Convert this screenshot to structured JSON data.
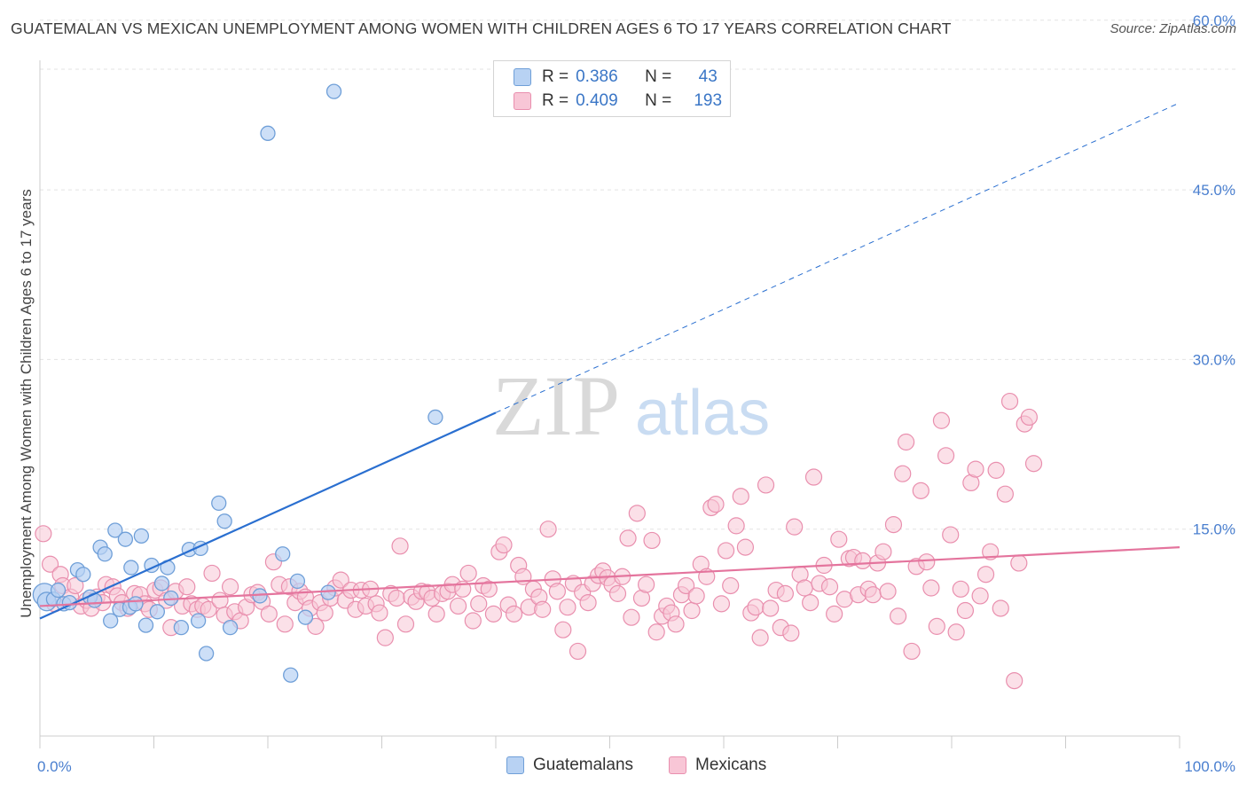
{
  "header": {
    "title": "GUATEMALAN VS MEXICAN UNEMPLOYMENT AMONG WOMEN WITH CHILDREN AGES 6 TO 17 YEARS CORRELATION CHART",
    "source": "Source: ZipAtlas.com"
  },
  "watermark": {
    "zip": "ZIP",
    "atlas": "atlas"
  },
  "legend": {
    "guatemalans": {
      "r_label": "R =",
      "r_value": "0.386",
      "n_label": "N =",
      "n_value": "43",
      "name": "Guatemalans"
    },
    "mexicans": {
      "r_label": "R =",
      "r_value": "0.409",
      "n_label": "N =",
      "n_value": "193",
      "name": "Mexicans"
    }
  },
  "colors": {
    "guatemalans_fill": "#b8d2f3",
    "guatemalans_stroke": "#6f9fd8",
    "guatemalans_line": "#2a6fd0",
    "mexicans_fill": "#f8c6d6",
    "mexicans_stroke": "#e98fae",
    "mexicans_line": "#e4749d",
    "axis_text": "#4a7fcf",
    "grid": "#e3e3e3"
  },
  "chart_data": {
    "type": "scatter",
    "title": "GUATEMALAN VS MEXICAN UNEMPLOYMENT AMONG WOMEN WITH CHILDREN AGES 6 TO 17 YEARS CORRELATION CHART",
    "xlabel": "",
    "ylabel": "Unemployment Among Women with Children Ages 6 to 17 years",
    "xlim": [
      0,
      100
    ],
    "ylim": [
      0,
      63
    ],
    "x_tick_labels": [
      "0.0%",
      "100.0%"
    ],
    "y_ticks": [
      15,
      30,
      45,
      60
    ],
    "y_tick_labels": [
      "15.0%",
      "30.0%",
      "45.0%",
      "60.0%"
    ],
    "grid": true,
    "legend_position": "top-center",
    "series": [
      {
        "name": "Guatemalans",
        "r": 0.386,
        "n": 43,
        "trend": {
          "x": [
            0,
            40
          ],
          "y": [
            7.1,
            25.3
          ],
          "dashed_extension_to": [
            100,
            52.7
          ]
        },
        "points": [
          [
            0.4,
            9.2,
            1.6
          ],
          [
            0.6,
            8.6,
            1.3
          ],
          [
            1.2,
            8.8,
            1
          ],
          [
            1.6,
            9.6,
            1
          ],
          [
            2.1,
            8.4,
            1
          ],
          [
            2.6,
            8.5,
            1
          ],
          [
            3.3,
            11.4,
            1
          ],
          [
            3.8,
            11.0,
            1
          ],
          [
            4.4,
            9.0,
            1
          ],
          [
            4.8,
            8.7,
            1
          ],
          [
            5.3,
            13.4,
            1
          ],
          [
            5.7,
            12.8,
            1
          ],
          [
            6.2,
            6.9,
            1
          ],
          [
            6.6,
            14.9,
            1
          ],
          [
            7.0,
            7.9,
            1
          ],
          [
            7.5,
            14.1,
            1
          ],
          [
            7.9,
            8.1,
            1
          ],
          [
            8.0,
            11.6,
            1
          ],
          [
            8.4,
            8.4,
            1
          ],
          [
            8.9,
            14.4,
            1
          ],
          [
            9.3,
            6.5,
            1
          ],
          [
            9.8,
            11.8,
            1
          ],
          [
            10.3,
            7.7,
            1
          ],
          [
            10.7,
            10.2,
            1
          ],
          [
            11.2,
            11.6,
            1
          ],
          [
            11.5,
            8.9,
            1
          ],
          [
            12.4,
            6.3,
            1
          ],
          [
            13.1,
            13.2,
            1
          ],
          [
            13.9,
            6.9,
            1
          ],
          [
            14.1,
            13.3,
            1
          ],
          [
            14.6,
            4.0,
            1
          ],
          [
            15.7,
            17.3,
            1
          ],
          [
            16.2,
            15.7,
            1
          ],
          [
            16.7,
            6.3,
            1
          ],
          [
            19.3,
            9.1,
            1
          ],
          [
            20.0,
            50.0,
            1
          ],
          [
            21.3,
            12.8,
            1
          ],
          [
            22.0,
            2.1,
            1
          ],
          [
            22.6,
            10.4,
            1
          ],
          [
            23.3,
            7.2,
            1
          ],
          [
            25.3,
            9.4,
            1
          ],
          [
            25.8,
            53.7,
            1
          ],
          [
            34.7,
            24.9,
            1
          ]
        ]
      },
      {
        "name": "Mexicans",
        "r": 0.409,
        "n": 193,
        "trend": {
          "x": [
            0,
            100
          ],
          "y": [
            8.2,
            13.4
          ]
        },
        "points": [
          [
            0.3,
            14.6
          ],
          [
            0.9,
            11.9
          ],
          [
            1.3,
            8.4
          ],
          [
            1.8,
            11.0
          ],
          [
            2.0,
            10.0
          ],
          [
            2.7,
            9.0
          ],
          [
            3.1,
            10.0
          ],
          [
            3.6,
            8.2
          ],
          [
            4.1,
            8.7
          ],
          [
            4.5,
            8.0
          ],
          [
            5.0,
            9.0
          ],
          [
            5.5,
            8.5
          ],
          [
            5.8,
            10.1
          ],
          [
            6.4,
            9.9
          ],
          [
            6.8,
            9.1
          ],
          [
            7.2,
            8.5
          ],
          [
            7.7,
            8.0
          ],
          [
            8.3,
            9.3
          ],
          [
            8.8,
            9.2
          ],
          [
            9.2,
            8.4
          ],
          [
            9.6,
            7.9
          ],
          [
            10.1,
            9.6
          ],
          [
            10.6,
            9.8
          ],
          [
            11.1,
            8.7
          ],
          [
            11.5,
            6.3
          ],
          [
            11.9,
            9.5
          ],
          [
            12.5,
            8.2
          ],
          [
            12.9,
            9.9
          ],
          [
            13.3,
            8.4
          ],
          [
            13.8,
            7.9
          ],
          [
            14.3,
            8.2
          ],
          [
            14.8,
            7.9
          ],
          [
            15.1,
            11.1
          ],
          [
            15.8,
            8.7
          ],
          [
            16.2,
            7.4
          ],
          [
            16.7,
            9.9
          ],
          [
            17.1,
            7.7
          ],
          [
            17.6,
            6.9
          ],
          [
            18.1,
            8.1
          ],
          [
            18.6,
            9.2
          ],
          [
            19.1,
            9.4
          ],
          [
            19.5,
            8.6
          ],
          [
            20.1,
            7.5
          ],
          [
            20.5,
            12.1
          ],
          [
            21.0,
            10.1
          ],
          [
            21.5,
            6.6
          ],
          [
            21.9,
            9.9
          ],
          [
            22.4,
            8.5
          ],
          [
            22.8,
            9.5
          ],
          [
            23.3,
            9.0
          ],
          [
            23.7,
            8.0
          ],
          [
            24.2,
            6.4
          ],
          [
            24.6,
            8.5
          ],
          [
            25.0,
            7.6
          ],
          [
            25.5,
            8.9
          ],
          [
            25.9,
            9.8
          ],
          [
            26.4,
            10.5
          ],
          [
            26.8,
            8.7
          ],
          [
            27.3,
            9.6
          ],
          [
            27.7,
            7.9
          ],
          [
            28.2,
            9.6
          ],
          [
            28.6,
            8.2
          ],
          [
            29.0,
            9.7
          ],
          [
            29.5,
            8.4
          ],
          [
            29.8,
            7.6
          ],
          [
            30.3,
            5.4
          ],
          [
            30.8,
            9.3
          ],
          [
            31.3,
            8.9
          ],
          [
            31.6,
            13.5
          ],
          [
            32.1,
            6.6
          ],
          [
            32.6,
            9.0
          ],
          [
            33.0,
            8.6
          ],
          [
            33.5,
            9.5
          ],
          [
            34.0,
            9.4
          ],
          [
            34.4,
            8.9
          ],
          [
            34.8,
            7.5
          ],
          [
            35.3,
            9.3
          ],
          [
            35.8,
            9.5
          ],
          [
            36.2,
            10.1
          ],
          [
            36.7,
            8.2
          ],
          [
            37.1,
            9.7
          ],
          [
            37.6,
            11.1
          ],
          [
            38.0,
            6.9
          ],
          [
            38.5,
            8.4
          ],
          [
            38.9,
            10.0
          ],
          [
            39.4,
            9.7
          ],
          [
            39.8,
            7.5
          ],
          [
            40.3,
            13.0
          ],
          [
            40.7,
            13.6
          ],
          [
            41.1,
            8.3
          ],
          [
            41.6,
            7.5
          ],
          [
            42.0,
            11.8
          ],
          [
            42.4,
            10.8
          ],
          [
            42.9,
            8.1
          ],
          [
            43.3,
            9.7
          ],
          [
            43.8,
            9.0
          ],
          [
            44.1,
            7.9
          ],
          [
            44.6,
            15.0
          ],
          [
            45.0,
            10.6
          ],
          [
            45.4,
            9.5
          ],
          [
            45.9,
            6.1
          ],
          [
            46.3,
            8.1
          ],
          [
            46.8,
            10.2
          ],
          [
            47.2,
            4.2
          ],
          [
            47.6,
            9.4
          ],
          [
            48.1,
            8.5
          ],
          [
            48.5,
            10.2
          ],
          [
            49.0,
            10.9
          ],
          [
            49.4,
            11.3
          ],
          [
            49.8,
            10.7
          ],
          [
            50.2,
            10.1
          ],
          [
            50.7,
            9.3
          ],
          [
            51.1,
            10.8
          ],
          [
            51.6,
            14.2
          ],
          [
            51.9,
            7.2
          ],
          [
            52.4,
            16.4
          ],
          [
            52.8,
            8.9
          ],
          [
            53.2,
            10.1
          ],
          [
            53.7,
            14.0
          ],
          [
            54.1,
            5.9
          ],
          [
            54.6,
            7.3
          ],
          [
            55.0,
            8.2
          ],
          [
            55.4,
            7.6
          ],
          [
            55.8,
            6.6
          ],
          [
            56.3,
            9.2
          ],
          [
            56.7,
            10.0
          ],
          [
            57.2,
            7.8
          ],
          [
            57.6,
            9.1
          ],
          [
            58.0,
            11.9
          ],
          [
            58.5,
            10.8
          ],
          [
            58.9,
            16.9
          ],
          [
            59.3,
            17.2
          ],
          [
            59.8,
            8.4
          ],
          [
            60.2,
            13.1
          ],
          [
            60.6,
            10.0
          ],
          [
            61.1,
            15.3
          ],
          [
            61.5,
            17.9
          ],
          [
            61.9,
            13.4
          ],
          [
            62.4,
            7.6
          ],
          [
            62.8,
            8.1
          ],
          [
            63.2,
            5.4
          ],
          [
            63.7,
            18.9
          ],
          [
            64.1,
            8.0
          ],
          [
            64.6,
            9.6
          ],
          [
            65.0,
            6.3
          ],
          [
            65.4,
            9.3
          ],
          [
            65.9,
            5.8
          ],
          [
            66.2,
            15.2
          ],
          [
            66.7,
            11.0
          ],
          [
            67.1,
            9.8
          ],
          [
            67.6,
            8.5
          ],
          [
            67.9,
            19.6
          ],
          [
            68.4,
            10.2
          ],
          [
            68.8,
            11.8
          ],
          [
            69.3,
            9.9
          ],
          [
            69.7,
            7.5
          ],
          [
            70.1,
            14.1
          ],
          [
            70.6,
            8.8
          ],
          [
            71.0,
            12.4
          ],
          [
            71.4,
            12.5
          ],
          [
            71.8,
            9.2
          ],
          [
            72.2,
            12.2
          ],
          [
            72.7,
            9.7
          ],
          [
            73.1,
            9.2
          ],
          [
            73.5,
            12.0
          ],
          [
            74.0,
            13.0
          ],
          [
            74.4,
            9.5
          ],
          [
            74.9,
            15.4
          ],
          [
            75.3,
            7.3
          ],
          [
            75.7,
            19.9
          ],
          [
            76.0,
            22.7
          ],
          [
            76.5,
            4.2
          ],
          [
            76.9,
            11.7
          ],
          [
            77.3,
            18.4
          ],
          [
            77.8,
            12.1
          ],
          [
            78.2,
            9.8
          ],
          [
            78.7,
            6.4
          ],
          [
            79.1,
            24.6
          ],
          [
            79.5,
            21.5
          ],
          [
            79.9,
            14.5
          ],
          [
            80.4,
            5.9
          ],
          [
            80.8,
            9.7
          ],
          [
            81.2,
            7.8
          ],
          [
            81.7,
            19.1
          ],
          [
            82.1,
            20.3
          ],
          [
            82.5,
            9.1
          ],
          [
            83.0,
            11.0
          ],
          [
            83.4,
            13.0
          ],
          [
            83.9,
            20.2
          ],
          [
            84.3,
            8.0
          ],
          [
            84.7,
            18.1
          ],
          [
            85.1,
            26.3
          ],
          [
            85.5,
            1.6
          ],
          [
            85.9,
            12.0
          ],
          [
            86.4,
            24.3
          ],
          [
            86.8,
            24.9
          ],
          [
            87.2,
            20.8
          ]
        ]
      }
    ]
  }
}
